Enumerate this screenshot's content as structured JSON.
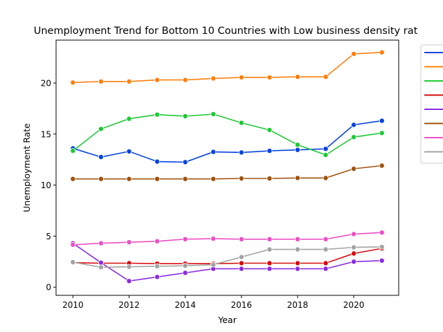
{
  "chart_data": {
    "type": "line",
    "title": "Unemployment Trend for Bottom 10 Countries with Low business density rat",
    "xlabel": "Year",
    "ylabel": "Unemployment Rate",
    "xlim": [
      2009.4,
      2021.6
    ],
    "ylim": [
      -0.8,
      24.2
    ],
    "xticks": [
      2010,
      2012,
      2014,
      2016,
      2018,
      2020
    ],
    "yticks": [
      0,
      5,
      10,
      15,
      20
    ],
    "grid": false,
    "legend_position": "right (outside plot)",
    "x": [
      2010,
      2011,
      2012,
      2013,
      2014,
      2015,
      2016,
      2017,
      2018,
      2019,
      2020,
      2021
    ],
    "series": [
      {
        "color": "#0343df",
        "values": [
          13.6,
          12.75,
          13.3,
          12.3,
          12.25,
          13.25,
          13.2,
          13.35,
          13.45,
          13.55,
          15.9,
          16.3
        ]
      },
      {
        "color": "#ff7f0e",
        "values": [
          20.05,
          20.15,
          20.15,
          20.3,
          20.3,
          20.45,
          20.55,
          20.55,
          20.6,
          20.6,
          22.85,
          23.0
        ]
      },
      {
        "color": "#1fc935",
        "values": [
          13.35,
          15.5,
          16.5,
          16.9,
          16.75,
          16.95,
          16.1,
          15.4,
          13.95,
          12.95,
          14.7,
          15.1
        ]
      },
      {
        "color": "#d60b0b",
        "values": [
          2.4,
          2.35,
          2.35,
          2.3,
          2.3,
          2.3,
          2.35,
          2.35,
          2.35,
          2.35,
          3.3,
          3.8
        ]
      },
      {
        "color": "#8a2be2",
        "values": [
          4.3,
          2.4,
          0.6,
          1.0,
          1.4,
          1.8,
          1.8,
          1.8,
          1.8,
          1.8,
          2.5,
          2.6
        ]
      },
      {
        "color": "#a0520e",
        "values": [
          10.6,
          10.6,
          10.6,
          10.6,
          10.6,
          10.6,
          10.65,
          10.65,
          10.7,
          10.7,
          11.6,
          11.9
        ]
      },
      {
        "color": "#ec4fc4",
        "values": [
          4.15,
          4.3,
          4.4,
          4.5,
          4.7,
          4.75,
          4.7,
          4.7,
          4.7,
          4.7,
          5.2,
          5.35
        ]
      },
      {
        "color": "#a3a3a3",
        "values": [
          2.45,
          1.95,
          2.0,
          2.05,
          2.1,
          2.2,
          2.95,
          3.7,
          3.7,
          3.7,
          3.9,
          3.95
        ]
      }
    ]
  }
}
